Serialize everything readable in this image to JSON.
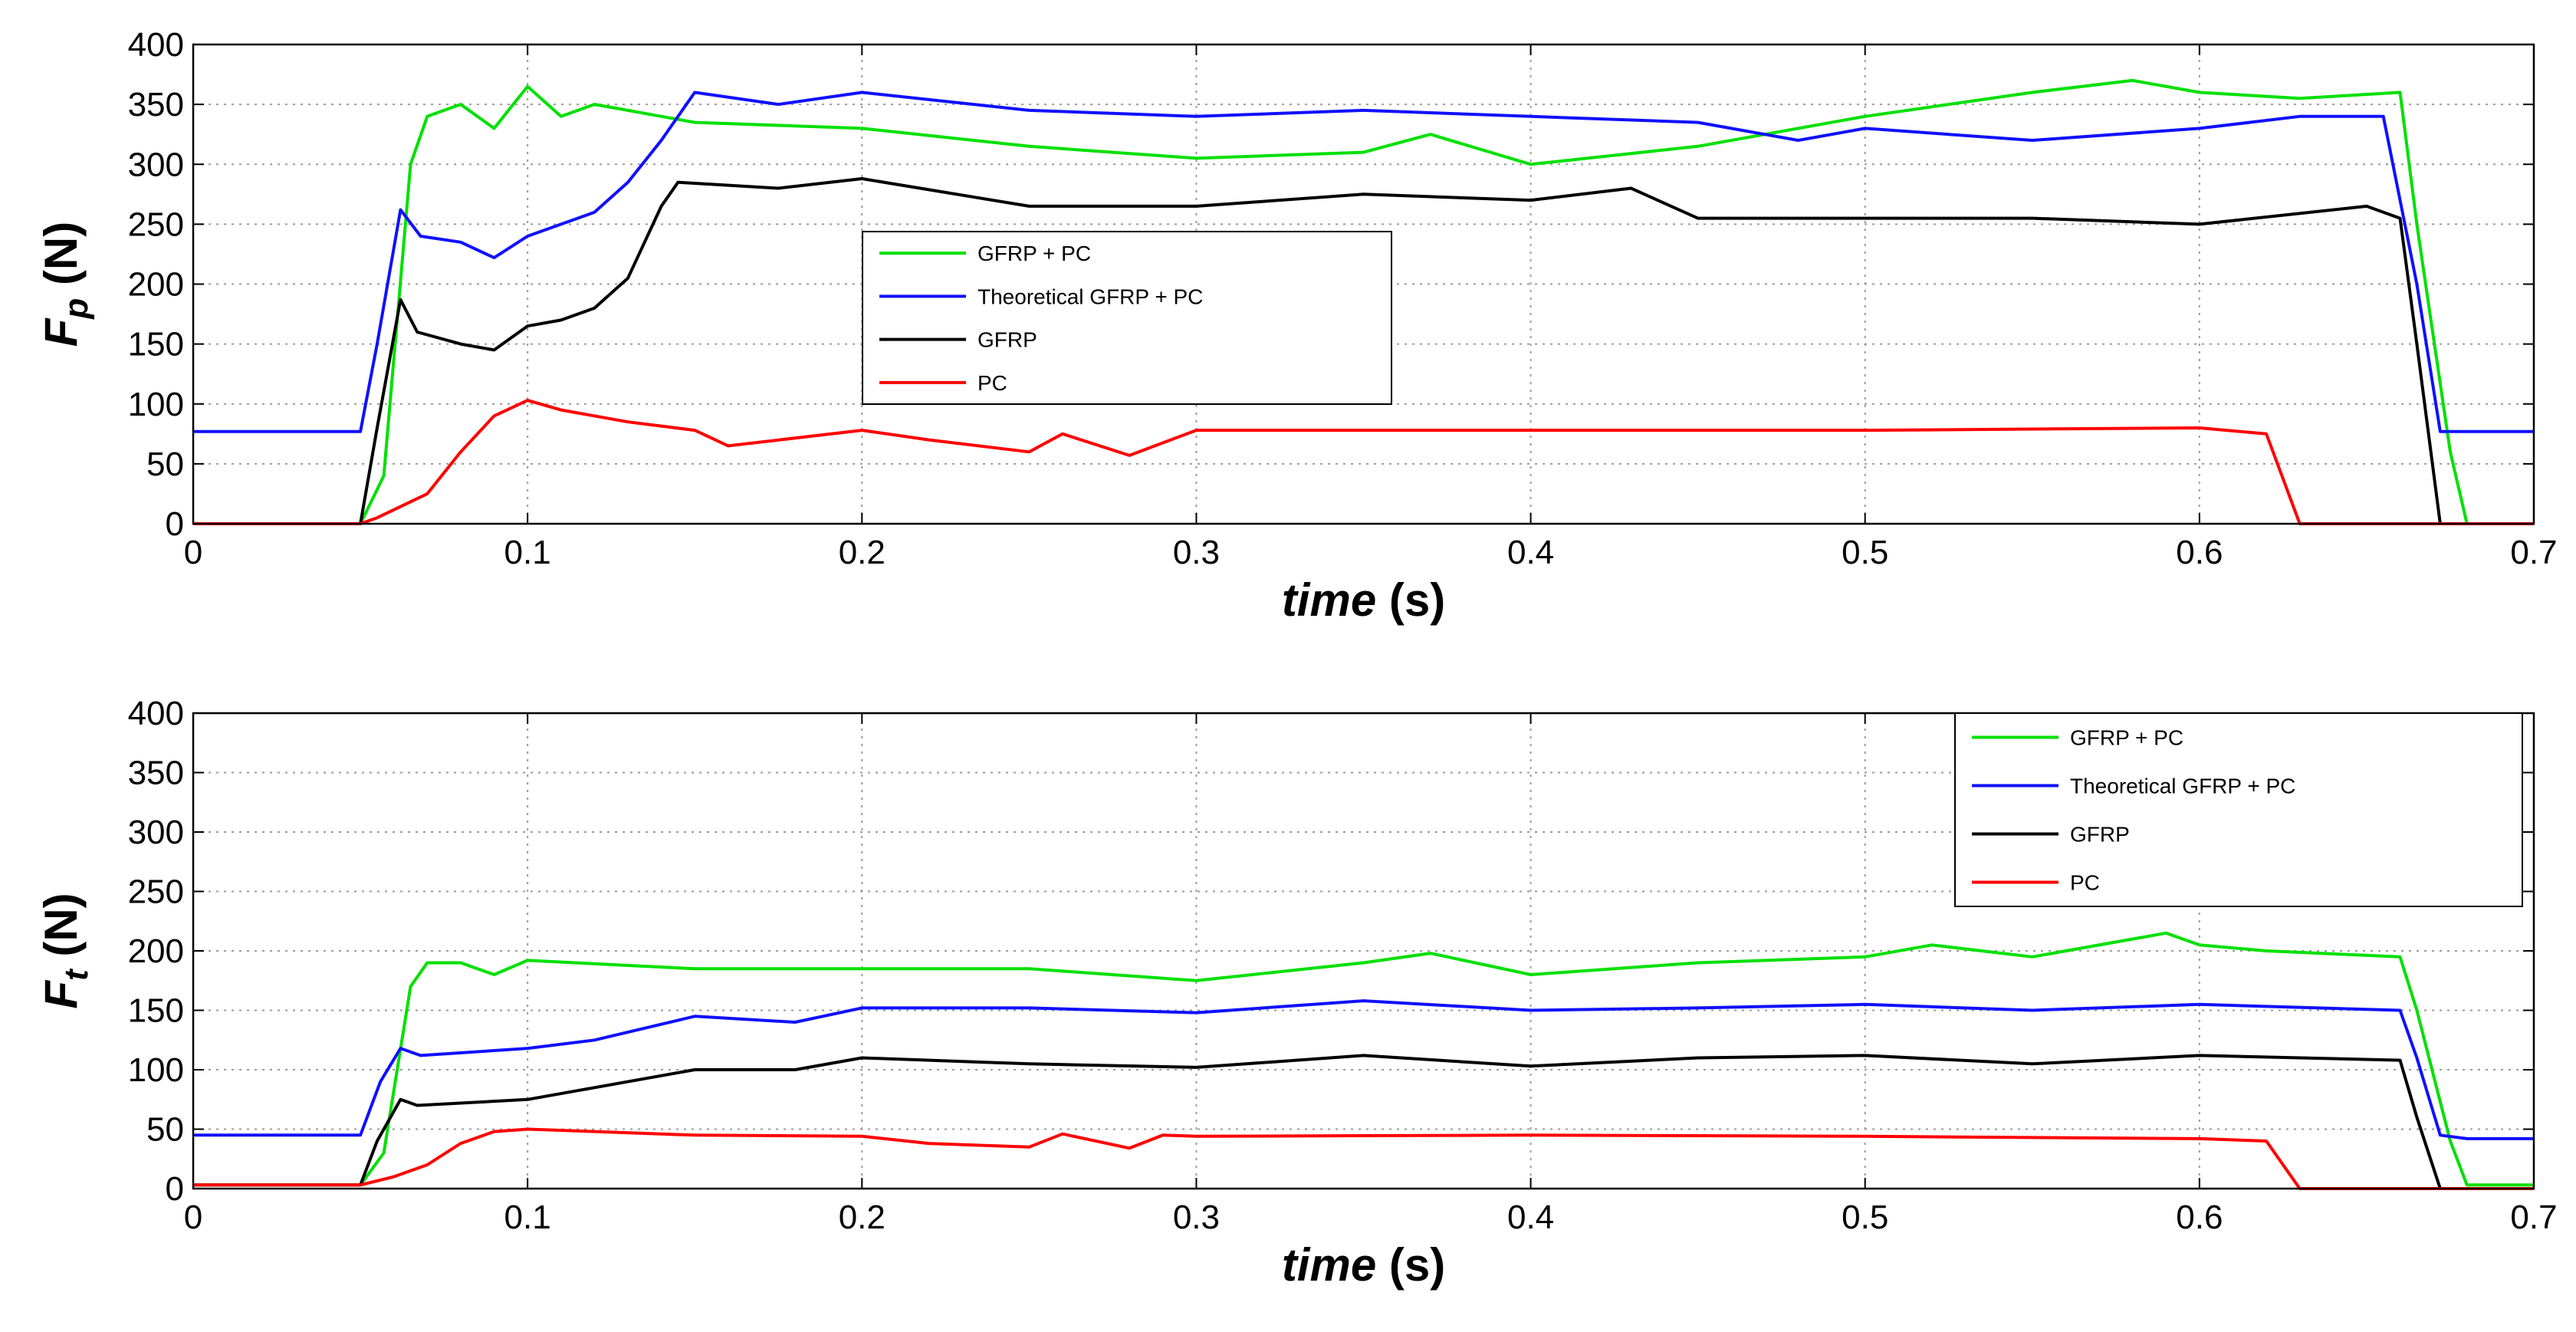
{
  "chart_data": [
    {
      "type": "line",
      "xlabel": "time (s)",
      "ylabel_main": "F",
      "ylabel_sub": "p",
      "ylabel_unit": " (N)",
      "xlim": [
        0,
        0.7
      ],
      "ylim": [
        0,
        400
      ],
      "xticks": [
        0,
        0.1,
        0.2,
        0.3,
        0.4,
        0.5,
        0.6,
        0.7
      ],
      "yticks": [
        0,
        50,
        100,
        150,
        200,
        250,
        300,
        350,
        400
      ],
      "grid": true,
      "legend_position": "center-left",
      "series": [
        {
          "name": "GFRP + PC",
          "color": "#00e000",
          "x": [
            0,
            0.05,
            0.057,
            0.065,
            0.07,
            0.08,
            0.09,
            0.1,
            0.11,
            0.12,
            0.13,
            0.14,
            0.15,
            0.2,
            0.25,
            0.3,
            0.35,
            0.37,
            0.4,
            0.45,
            0.5,
            0.55,
            0.58,
            0.6,
            0.63,
            0.66,
            0.665,
            0.675,
            0.68,
            0.7
          ],
          "y": [
            0,
            0,
            40,
            300,
            340,
            350,
            330,
            365,
            340,
            350,
            345,
            340,
            335,
            330,
            315,
            305,
            310,
            325,
            300,
            315,
            340,
            360,
            370,
            360,
            355,
            360,
            250,
            60,
            0,
            0
          ]
        },
        {
          "name": "Theoretical GFRP + PC",
          "color": "#1010ff",
          "x": [
            0,
            0.05,
            0.055,
            0.062,
            0.068,
            0.08,
            0.09,
            0.1,
            0.11,
            0.12,
            0.13,
            0.14,
            0.15,
            0.175,
            0.2,
            0.25,
            0.3,
            0.35,
            0.4,
            0.45,
            0.48,
            0.5,
            0.55,
            0.6,
            0.63,
            0.655,
            0.665,
            0.672,
            0.68,
            0.7
          ],
          "y": [
            77,
            77,
            150,
            262,
            240,
            235,
            222,
            240,
            250,
            260,
            285,
            320,
            360,
            350,
            360,
            345,
            340,
            345,
            340,
            335,
            320,
            330,
            320,
            330,
            340,
            340,
            200,
            77,
            77,
            77
          ]
        },
        {
          "name": "GFRP",
          "color": "#000000",
          "x": [
            0,
            0.05,
            0.055,
            0.062,
            0.067,
            0.08,
            0.09,
            0.1,
            0.11,
            0.12,
            0.13,
            0.14,
            0.145,
            0.175,
            0.2,
            0.25,
            0.3,
            0.35,
            0.4,
            0.43,
            0.45,
            0.5,
            0.55,
            0.6,
            0.65,
            0.66,
            0.665,
            0.672,
            0.7
          ],
          "y": [
            0,
            0,
            80,
            187,
            160,
            150,
            145,
            165,
            170,
            180,
            205,
            265,
            285,
            280,
            288,
            265,
            265,
            275,
            270,
            280,
            255,
            255,
            255,
            250,
            265,
            255,
            150,
            0,
            0
          ]
        },
        {
          "name": "PC",
          "color": "#ff0000",
          "x": [
            0,
            0.05,
            0.055,
            0.07,
            0.08,
            0.09,
            0.1,
            0.11,
            0.13,
            0.15,
            0.16,
            0.2,
            0.22,
            0.25,
            0.26,
            0.28,
            0.3,
            0.4,
            0.5,
            0.6,
            0.62,
            0.63,
            0.7
          ],
          "y": [
            0,
            0,
            5,
            25,
            60,
            90,
            103,
            95,
            85,
            78,
            65,
            78,
            70,
            60,
            75,
            57,
            78,
            78,
            78,
            80,
            75,
            0,
            0
          ]
        }
      ]
    },
    {
      "type": "line",
      "xlabel": "time (s)",
      "ylabel_main": "F",
      "ylabel_sub": "t",
      "ylabel_unit": " (N)",
      "xlim": [
        0,
        0.7
      ],
      "ylim": [
        0,
        400
      ],
      "xticks": [
        0,
        0.1,
        0.2,
        0.3,
        0.4,
        0.5,
        0.6,
        0.7
      ],
      "yticks": [
        0,
        50,
        100,
        150,
        200,
        250,
        300,
        350,
        400
      ],
      "grid": true,
      "legend_position": "top-right",
      "series": [
        {
          "name": "GFRP + PC",
          "color": "#00e000",
          "x": [
            0,
            0.05,
            0.057,
            0.065,
            0.07,
            0.08,
            0.09,
            0.1,
            0.15,
            0.2,
            0.25,
            0.3,
            0.35,
            0.37,
            0.4,
            0.45,
            0.5,
            0.52,
            0.55,
            0.59,
            0.6,
            0.62,
            0.66,
            0.665,
            0.675,
            0.68,
            0.7
          ],
          "y": [
            3,
            3,
            30,
            170,
            190,
            190,
            180,
            192,
            185,
            185,
            185,
            175,
            190,
            198,
            180,
            190,
            195,
            205,
            195,
            215,
            205,
            200,
            195,
            150,
            40,
            3,
            3
          ]
        },
        {
          "name": "Theoretical GFRP + PC",
          "color": "#1010ff",
          "x": [
            0,
            0.05,
            0.056,
            0.062,
            0.068,
            0.1,
            0.12,
            0.15,
            0.18,
            0.2,
            0.25,
            0.3,
            0.35,
            0.4,
            0.45,
            0.5,
            0.55,
            0.6,
            0.66,
            0.665,
            0.672,
            0.68,
            0.7
          ],
          "y": [
            45,
            45,
            90,
            118,
            112,
            118,
            125,
            145,
            140,
            152,
            152,
            148,
            158,
            150,
            152,
            155,
            150,
            155,
            150,
            110,
            45,
            42,
            42
          ]
        },
        {
          "name": "GFRP",
          "color": "#000000",
          "x": [
            0,
            0.05,
            0.055,
            0.062,
            0.067,
            0.1,
            0.12,
            0.15,
            0.18,
            0.2,
            0.25,
            0.3,
            0.35,
            0.4,
            0.45,
            0.5,
            0.55,
            0.6,
            0.66,
            0.665,
            0.672,
            0.7
          ],
          "y": [
            3,
            3,
            40,
            75,
            70,
            75,
            85,
            100,
            100,
            110,
            105,
            102,
            112,
            103,
            110,
            112,
            105,
            112,
            108,
            60,
            0,
            0
          ]
        },
        {
          "name": "PC",
          "color": "#ff0000",
          "x": [
            0,
            0.05,
            0.06,
            0.07,
            0.08,
            0.09,
            0.1,
            0.15,
            0.2,
            0.22,
            0.25,
            0.26,
            0.28,
            0.29,
            0.3,
            0.4,
            0.5,
            0.6,
            0.62,
            0.63,
            0.7
          ],
          "y": [
            3,
            3,
            10,
            20,
            38,
            48,
            50,
            45,
            44,
            38,
            35,
            46,
            34,
            45,
            44,
            45,
            44,
            42,
            40,
            0,
            0
          ]
        }
      ]
    }
  ]
}
